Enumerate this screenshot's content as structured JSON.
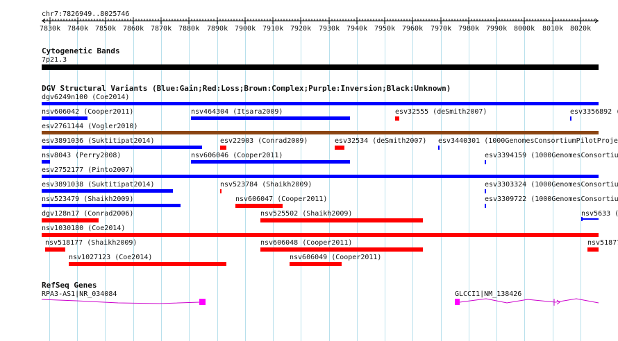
{
  "region": {
    "label": "chr7:7826949..8025746"
  },
  "ruler": {
    "ticks": [
      "7830k",
      "7840k",
      "7850k",
      "7860k",
      "7870k",
      "7880k",
      "7890k",
      "7900k",
      "7910k",
      "7920k",
      "7930k",
      "7940k",
      "7950k",
      "7960k",
      "7970k",
      "7980k",
      "7990k",
      "8000k",
      "8010k",
      "8020k"
    ]
  },
  "tracks": {
    "cyto": {
      "title": "Cytogenetic Bands",
      "band_label": "7p21.3"
    },
    "dgv": {
      "title": "DGV Structural Variants (Blue:Gain;Red:Loss;Brown:Complex;Purple:Inversion;Black:Unknown)",
      "features": [
        {
          "label": "dgv6249n100 (Coe2014)",
          "color": "#0000ff"
        },
        {
          "label": "nsv606042 (Cooper2011)",
          "color": "#0000ff"
        },
        {
          "label": "nsv464304 (Itsara2009)",
          "color": "#0000ff"
        },
        {
          "label": "esv32555 (deSmith2007)",
          "color": "#ff0000"
        },
        {
          "label": "esv3356892 (",
          "color": "#0000ff"
        },
        {
          "label": "esv2761144 (Vogler2010)",
          "color": "#8b4513"
        },
        {
          "label": "esv3891036 (Suktitipat2014)",
          "color": "#0000ff"
        },
        {
          "label": "esv22903 (Conrad2009)",
          "color": "#ff0000"
        },
        {
          "label": "esv32534 (deSmith2007)",
          "color": "#ff0000"
        },
        {
          "label": "esv3440301 (1000GenomesConsortiumPilotProje",
          "color": "#0000ff"
        },
        {
          "label": "nsv8043 (Perry2008)",
          "color": "#0000ff"
        },
        {
          "label": "nsv606046 (Cooper2011)",
          "color": "#0000ff"
        },
        {
          "label": "esv3394159 (1000GenomesConsortiu",
          "color": "#0000ff"
        },
        {
          "label": "esv2752177 (Pinto2007)",
          "color": "#0000ff"
        },
        {
          "label": "esv3891038 (Suktitipat2014)",
          "color": "#0000ff"
        },
        {
          "label": "nsv523784 (Shaikh2009)",
          "color": "#ff0000"
        },
        {
          "label": "esv3303324 (1000GenomesConsortiu",
          "color": "#0000ff"
        },
        {
          "label": "nsv523479 (Shaikh2009)",
          "color": "#0000ff"
        },
        {
          "label": "nsv606047 (Cooper2011)",
          "color": "#ff0000"
        },
        {
          "label": "esv3309722 (1000GenomesConsortiu",
          "color": "#0000ff"
        },
        {
          "label": "dgv128n17 (Conrad2006)",
          "color": "#ff0000"
        },
        {
          "label": "nsv525502 (Shaikh2009)",
          "color": "#ff0000"
        },
        {
          "label": "nsv5633 (",
          "color": "#0000ff"
        },
        {
          "label": "nsv1030180 (Coe2014)",
          "color": "#ff0000"
        },
        {
          "label": "nsv518177 (Shaikh2009)",
          "color": "#ff0000"
        },
        {
          "label": "nsv606048 (Cooper2011)",
          "color": "#ff0000"
        },
        {
          "label": "nsv51877",
          "color": "#ff0000"
        },
        {
          "label": "nsv1027123 (Coe2014)",
          "color": "#ff0000"
        },
        {
          "label": "nsv606049 (Cooper2011)",
          "color": "#ff0000"
        }
      ]
    },
    "refseq": {
      "title": "RefSeq Genes",
      "genes": [
        {
          "label": "RPA3-AS1|NR_034084",
          "color": "#cc00cc"
        },
        {
          "label": "GLCCI1|NM_138426",
          "color": "#cc00cc"
        }
      ]
    }
  }
}
